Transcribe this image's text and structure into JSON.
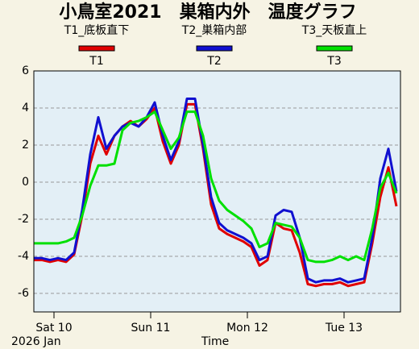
{
  "chart_data": {
    "type": "line",
    "title": "小鳥室2021　巣箱内外　温度グラフ",
    "x_label": "Time",
    "x_sublabel": "2026 Jan",
    "x": [
      "2026-01-09T19:00",
      "2026-01-09T21:00",
      "2026-01-09T23:00",
      "2026-01-10T01:00",
      "2026-01-10T03:00",
      "2026-01-10T05:00",
      "2026-01-10T07:00",
      "2026-01-10T09:00",
      "2026-01-10T11:00",
      "2026-01-10T13:00",
      "2026-01-10T15:00",
      "2026-01-10T17:00",
      "2026-01-10T19:00",
      "2026-01-10T21:00",
      "2026-01-10T23:00",
      "2026-01-11T01:00",
      "2026-01-11T03:00",
      "2026-01-11T05:00",
      "2026-01-11T07:00",
      "2026-01-11T09:00",
      "2026-01-11T11:00",
      "2026-01-11T13:00",
      "2026-01-11T15:00",
      "2026-01-11T17:00",
      "2026-01-11T19:00",
      "2026-01-11T21:00",
      "2026-01-11T23:00",
      "2026-01-12T01:00",
      "2026-01-12T03:00",
      "2026-01-12T05:00",
      "2026-01-12T07:00",
      "2026-01-12T09:00",
      "2026-01-12T11:00",
      "2026-01-12T13:00",
      "2026-01-12T15:00",
      "2026-01-12T17:00",
      "2026-01-12T19:00",
      "2026-01-12T21:00",
      "2026-01-12T23:00",
      "2026-01-13T01:00",
      "2026-01-13T03:00",
      "2026-01-13T05:00",
      "2026-01-13T07:00",
      "2026-01-13T09:00",
      "2026-01-13T11:00",
      "2026-01-13T13:00"
    ],
    "xlim": [
      "2026-01-09T19:00",
      "2026-01-13T14:00"
    ],
    "xticks": [
      {
        "value": "2026-01-10T00:00",
        "label": "Sat 10"
      },
      {
        "value": "2026-01-11T00:00",
        "label": "Sun 11"
      },
      {
        "value": "2026-01-12T00:00",
        "label": "Mon 12"
      },
      {
        "value": "2026-01-13T00:00",
        "label": "Tue 13"
      }
    ],
    "ylim": [
      -7,
      6
    ],
    "yticks": [
      -6,
      -4,
      -2,
      0,
      2,
      4,
      6
    ],
    "grid": true,
    "series": [
      {
        "name": "T1",
        "description": "T1_底板直下",
        "color": "#e00000",
        "values": [
          -4.2,
          -4.2,
          -4.3,
          -4.2,
          -4.3,
          -3.9,
          -1.8,
          1.0,
          2.5,
          1.5,
          2.5,
          3,
          3.3,
          3,
          3.4,
          4.0,
          2.2,
          1.0,
          2.0,
          4.2,
          4.2,
          1.8,
          -1.2,
          -2.5,
          -2.8,
          -3.0,
          -3.2,
          -3.5,
          -4.5,
          -4.2,
          -2.2,
          -2.5,
          -2.6,
          -3.8,
          -5.5,
          -5.6,
          -5.5,
          -5.5,
          -5.4,
          -5.6,
          -5.5,
          -5.4,
          -3.3,
          -0.8,
          0.8,
          -1.3
        ]
      },
      {
        "name": "T2",
        "description": "T2_巣箱内部",
        "color": "#1010d0",
        "values": [
          -4.1,
          -4.1,
          -4.2,
          -4.1,
          -4.2,
          -3.8,
          -1.5,
          1.5,
          3.5,
          1.8,
          2.5,
          3,
          3.2,
          3.0,
          3.5,
          4.3,
          2.5,
          1.2,
          2.2,
          4.5,
          4.5,
          2.0,
          -0.8,
          -2.2,
          -2.6,
          -2.8,
          -3.0,
          -3.3,
          -4.2,
          -4.0,
          -1.8,
          -1.5,
          -1.6,
          -3.0,
          -5.2,
          -5.4,
          -5.3,
          -5.3,
          -5.2,
          -5.4,
          -5.3,
          -5.2,
          -3.0,
          0.2,
          1.8,
          -0.5
        ]
      },
      {
        "name": "T3",
        "description": "T3_天板直上",
        "color": "#00e000",
        "values": [
          -3.3,
          -3.3,
          -3.3,
          -3.3,
          -3.2,
          -3.0,
          -1.8,
          -0.2,
          0.9,
          0.9,
          1.0,
          2.8,
          3.2,
          3.3,
          3.5,
          3.8,
          2.8,
          1.8,
          2.4,
          3.8,
          3.8,
          2.5,
          0.2,
          -1.0,
          -1.5,
          -1.8,
          -2.1,
          -2.5,
          -3.5,
          -3.3,
          -2.2,
          -2.3,
          -2.4,
          -3.0,
          -4.2,
          -4.3,
          -4.3,
          -4.2,
          -4.0,
          -4.2,
          -4.0,
          -4.2,
          -2.5,
          -0.3,
          0.5,
          -0.6
        ]
      }
    ]
  }
}
